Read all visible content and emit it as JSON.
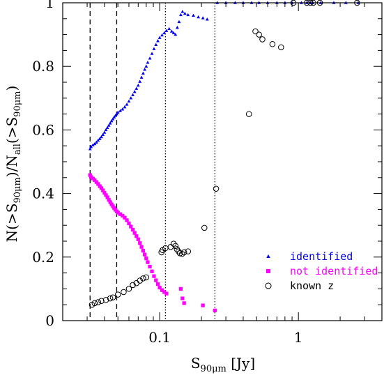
{
  "chart_data": {
    "type": "scatter",
    "x_scale": "log",
    "xlim": [
      0.02,
      4.0
    ],
    "ylim": [
      0,
      1.0
    ],
    "xlabel": {
      "main": "S",
      "sub": "90μm",
      "unit": " [Jy]"
    },
    "ylabel": {
      "p1": "N(>S",
      "s1": "90μm",
      "p2": ")/N",
      "s2": "all",
      "p3": "(>S",
      "s3": "90μm",
      "p4": ")"
    },
    "x_ticks": [
      {
        "value": 0.1,
        "label": "0.1"
      },
      {
        "value": 1,
        "label": "1"
      }
    ],
    "y_ticks": [
      {
        "value": 0,
        "label": "0"
      },
      {
        "value": 0.2,
        "label": "0.2"
      },
      {
        "value": 0.4,
        "label": "0.4"
      },
      {
        "value": 0.6,
        "label": "0.6"
      },
      {
        "value": 0.8,
        "label": "0.8"
      },
      {
        "value": 1,
        "label": "1"
      }
    ],
    "vlines_dashed": [
      0.0315,
      0.049
    ],
    "vlines_dotted": [
      0.11,
      0.25
    ],
    "series": [
      {
        "name": "identified",
        "marker": "triangle",
        "color": "#0000ee",
        "points": [
          [
            0.0315,
            0.54
          ],
          [
            0.032,
            0.547
          ],
          [
            0.033,
            0.552
          ],
          [
            0.034,
            0.556
          ],
          [
            0.035,
            0.561
          ],
          [
            0.036,
            0.567
          ],
          [
            0.037,
            0.572
          ],
          [
            0.038,
            0.578
          ],
          [
            0.039,
            0.585
          ],
          [
            0.04,
            0.592
          ],
          [
            0.041,
            0.6
          ],
          [
            0.042,
            0.607
          ],
          [
            0.043,
            0.614
          ],
          [
            0.044,
            0.621
          ],
          [
            0.045,
            0.628
          ],
          [
            0.046,
            0.634
          ],
          [
            0.047,
            0.64
          ],
          [
            0.048,
            0.645
          ],
          [
            0.049,
            0.65
          ],
          [
            0.05,
            0.655
          ],
          [
            0.052,
            0.66
          ],
          [
            0.054,
            0.665
          ],
          [
            0.056,
            0.672
          ],
          [
            0.058,
            0.68
          ],
          [
            0.06,
            0.69
          ],
          [
            0.062,
            0.7
          ],
          [
            0.064,
            0.71
          ],
          [
            0.066,
            0.72
          ],
          [
            0.068,
            0.73
          ],
          [
            0.07,
            0.74
          ],
          [
            0.072,
            0.752
          ],
          [
            0.074,
            0.765
          ],
          [
            0.076,
            0.778
          ],
          [
            0.078,
            0.79
          ],
          [
            0.08,
            0.8
          ],
          [
            0.082,
            0.812
          ],
          [
            0.085,
            0.825
          ],
          [
            0.088,
            0.84
          ],
          [
            0.091,
            0.855
          ],
          [
            0.094,
            0.868
          ],
          [
            0.097,
            0.88
          ],
          [
            0.1,
            0.89
          ],
          [
            0.104,
            0.898
          ],
          [
            0.108,
            0.905
          ],
          [
            0.112,
            0.912
          ],
          [
            0.117,
            0.918
          ],
          [
            0.122,
            0.91
          ],
          [
            0.126,
            0.905
          ],
          [
            0.13,
            0.9
          ],
          [
            0.134,
            0.922
          ],
          [
            0.138,
            0.94
          ],
          [
            0.142,
            0.962
          ],
          [
            0.146,
            0.972
          ],
          [
            0.152,
            0.966
          ],
          [
            0.16,
            0.962
          ],
          [
            0.175,
            0.96
          ],
          [
            0.19,
            0.955
          ],
          [
            0.205,
            0.952
          ],
          [
            0.22,
            0.948
          ],
          [
            0.26,
            1
          ],
          [
            0.3,
            1
          ],
          [
            0.35,
            1
          ],
          [
            0.4,
            1
          ],
          [
            0.46,
            1
          ],
          [
            0.52,
            1
          ],
          [
            0.6,
            1
          ],
          [
            0.7,
            1
          ],
          [
            0.8,
            1
          ],
          [
            0.9,
            1
          ],
          [
            1.05,
            1
          ],
          [
            1.15,
            1
          ],
          [
            1.22,
            1
          ],
          [
            1.27,
            1
          ],
          [
            1.45,
            1
          ],
          [
            1.8,
            1
          ],
          [
            2.2,
            1
          ],
          [
            2.7,
            1
          ]
        ]
      },
      {
        "name": "not identified",
        "marker": "square",
        "color": "#ff00ff",
        "points": [
          [
            0.0315,
            0.458
          ],
          [
            0.032,
            0.452
          ],
          [
            0.033,
            0.447
          ],
          [
            0.034,
            0.442
          ],
          [
            0.035,
            0.436
          ],
          [
            0.036,
            0.43
          ],
          [
            0.037,
            0.423
          ],
          [
            0.038,
            0.417
          ],
          [
            0.039,
            0.41
          ],
          [
            0.04,
            0.402
          ],
          [
            0.041,
            0.395
          ],
          [
            0.042,
            0.388
          ],
          [
            0.043,
            0.38
          ],
          [
            0.044,
            0.373
          ],
          [
            0.045,
            0.366
          ],
          [
            0.046,
            0.36
          ],
          [
            0.047,
            0.354
          ],
          [
            0.048,
            0.349
          ],
          [
            0.049,
            0.344
          ],
          [
            0.05,
            0.34
          ],
          [
            0.052,
            0.335
          ],
          [
            0.054,
            0.33
          ],
          [
            0.056,
            0.324
          ],
          [
            0.058,
            0.316
          ],
          [
            0.06,
            0.306
          ],
          [
            0.062,
            0.296
          ],
          [
            0.064,
            0.286
          ],
          [
            0.066,
            0.276
          ],
          [
            0.068,
            0.266
          ],
          [
            0.07,
            0.256
          ],
          [
            0.072,
            0.244
          ],
          [
            0.074,
            0.232
          ],
          [
            0.076,
            0.22
          ],
          [
            0.078,
            0.208
          ],
          [
            0.08,
            0.196
          ],
          [
            0.082,
            0.184
          ],
          [
            0.085,
            0.17
          ],
          [
            0.088,
            0.155
          ],
          [
            0.091,
            0.14
          ],
          [
            0.094,
            0.127
          ],
          [
            0.097,
            0.115
          ],
          [
            0.1,
            0.104
          ],
          [
            0.104,
            0.096
          ],
          [
            0.108,
            0.09
          ],
          [
            0.112,
            0.085
          ],
          [
            0.142,
            0.1
          ],
          [
            0.146,
            0.07
          ],
          [
            0.15,
            0.055
          ],
          [
            0.205,
            0.048
          ],
          [
            0.25,
            0.032
          ]
        ]
      },
      {
        "name": "known z",
        "marker": "circle",
        "color": "#000000",
        "points": [
          [
            0.0325,
            0.05
          ],
          [
            0.034,
            0.055
          ],
          [
            0.036,
            0.058
          ],
          [
            0.038,
            0.062
          ],
          [
            0.041,
            0.065
          ],
          [
            0.044,
            0.07
          ],
          [
            0.046,
            0.073
          ],
          [
            0.05,
            0.082
          ],
          [
            0.055,
            0.09
          ],
          [
            0.06,
            0.1
          ],
          [
            0.064,
            0.112
          ],
          [
            0.068,
            0.118
          ],
          [
            0.072,
            0.126
          ],
          [
            0.076,
            0.133
          ],
          [
            0.08,
            0.136
          ],
          [
            0.103,
            0.215
          ],
          [
            0.105,
            0.222
          ],
          [
            0.11,
            0.228
          ],
          [
            0.12,
            0.232
          ],
          [
            0.126,
            0.242
          ],
          [
            0.13,
            0.235
          ],
          [
            0.133,
            0.225
          ],
          [
            0.137,
            0.218
          ],
          [
            0.14,
            0.212
          ],
          [
            0.145,
            0.21
          ],
          [
            0.15,
            0.215
          ],
          [
            0.16,
            0.218
          ],
          [
            0.21,
            0.292
          ],
          [
            0.255,
            0.415
          ],
          [
            0.44,
            0.65
          ],
          [
            0.49,
            0.91
          ],
          [
            0.52,
            0.9
          ],
          [
            0.55,
            0.885
          ],
          [
            0.65,
            0.87
          ],
          [
            0.75,
            0.86
          ],
          [
            0.92,
            1
          ],
          [
            1.15,
            1
          ],
          [
            1.22,
            1
          ],
          [
            1.28,
            1
          ],
          [
            1.43,
            1
          ],
          [
            2.65,
            1
          ]
        ]
      }
    ],
    "legend": {
      "placement": "bottom-right",
      "entries": [
        "identified",
        "not identified",
        "known z"
      ]
    }
  }
}
